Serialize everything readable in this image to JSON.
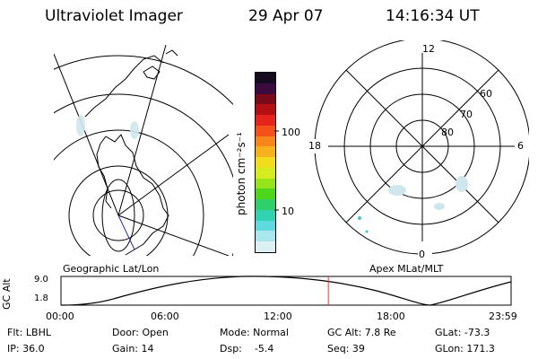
{
  "header": {
    "instrument": "Ultraviolet Imager",
    "date": "29 Apr 07",
    "time": "14:16:34 UT"
  },
  "colorbar": {
    "unit_label": "photon cm⁻²s⁻¹",
    "ticks": [
      "100",
      "10"
    ],
    "colors": [
      "#150a20",
      "#3b0b3f",
      "#7a0a1a",
      "#b40f12",
      "#e6231a",
      "#f5501a",
      "#f7851b",
      "#f7b11c",
      "#f1dc1d",
      "#d6ec1e",
      "#97e41c",
      "#4fd61b",
      "#2fd06a",
      "#31d3b0",
      "#5fdbe0",
      "#a9e6ee",
      "#dcf0f4"
    ]
  },
  "geo_panel": {
    "label": "Geographic Lat/Lon"
  },
  "polar_panel": {
    "label": "Apex MLat/MLT",
    "mlt_labels": [
      "12",
      "18",
      "6",
      "0"
    ],
    "mlat_labels": [
      "60",
      "70",
      "80"
    ]
  },
  "altitude_plot": {
    "axis_label": "GC Alt",
    "y_ticks": [
      "9.0",
      "1.8"
    ],
    "x_ticks": [
      "00:00",
      "06:00",
      "12:00",
      "18:00",
      "23:59"
    ],
    "marker_time_fraction": 0.594,
    "marker_color": "#ff3030"
  },
  "info": {
    "row1": {
      "flt": "Flt: LBHL",
      "door": "Door: Open",
      "mode": "Mode: Normal",
      "gcalt": "GC Alt: 7.8 Re",
      "glat": "GLat: -73.3"
    },
    "row2": {
      "ip": "IP: 36.0",
      "gain": "Gain: 14",
      "dsp": "Dsp:    -5.4",
      "seq": "Seq: 39",
      "glon": "GLon: 171.3"
    }
  }
}
